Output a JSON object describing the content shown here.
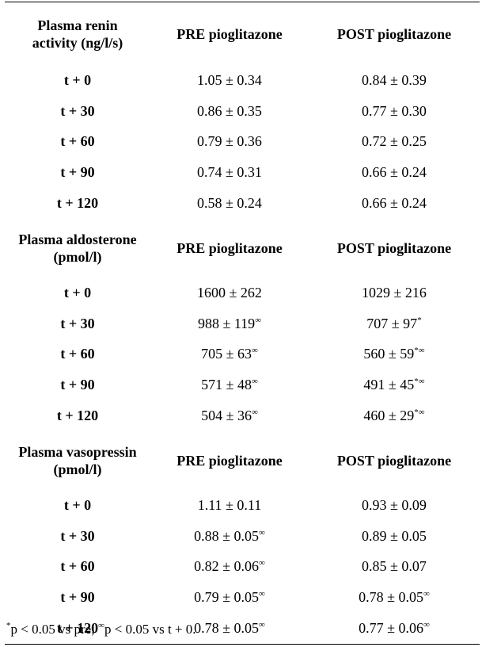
{
  "sections": [
    {
      "label_line1": "Plasma renin",
      "label_line2": "activity (ng/l/s)",
      "col_pre": "PRE pioglitazone",
      "col_post": "POST pioglitazone",
      "rows": [
        {
          "time": "t + 0",
          "pre": "1.05 ± 0.34",
          "pre_sup": "",
          "post": "0.84 ± 0.39",
          "post_sup": ""
        },
        {
          "time": "t + 30",
          "pre": "0.86 ± 0.35",
          "pre_sup": "",
          "post": "0.77 ± 0.30",
          "post_sup": ""
        },
        {
          "time": "t + 60",
          "pre": "0.79 ± 0.36",
          "pre_sup": "",
          "post": "0.72 ± 0.25",
          "post_sup": ""
        },
        {
          "time": "t + 90",
          "pre": "0.74 ± 0.31",
          "pre_sup": "",
          "post": "0.66 ± 0.24",
          "post_sup": ""
        },
        {
          "time": "t + 120",
          "pre": "0.58 ± 0.24",
          "pre_sup": "",
          "post": "0.66 ± 0.24",
          "post_sup": ""
        }
      ]
    },
    {
      "label_line1": "Plasma aldosterone",
      "label_line2": "(pmol/l)",
      "col_pre": "PRE pioglitazone",
      "col_post": "POST pioglitazone",
      "rows": [
        {
          "time": "t + 0",
          "pre": "1600 ± 262",
          "pre_sup": "",
          "post": "1029 ± 216",
          "post_sup": ""
        },
        {
          "time": "t + 30",
          "pre": "988 ± 119",
          "pre_sup": "∞",
          "post": "707 ± 97",
          "post_sup": "*"
        },
        {
          "time": "t + 60",
          "pre": "705 ± 63",
          "pre_sup": "∞",
          "post": "560 ± 59",
          "post_sup": "*∞"
        },
        {
          "time": "t + 90",
          "pre": "571 ± 48",
          "pre_sup": "∞",
          "post": "491 ± 45",
          "post_sup": "*∞"
        },
        {
          "time": "t + 120",
          "pre": "504 ± 36",
          "pre_sup": "∞",
          "post": "460 ± 29",
          "post_sup": "*∞"
        }
      ]
    },
    {
      "label_line1": "Plasma vasopressin",
      "label_line2": "(pmol/l)",
      "col_pre": "PRE pioglitazone",
      "col_post": "POST pioglitazone",
      "rows": [
        {
          "time": "t + 0",
          "pre": "1.11 ± 0.11",
          "pre_sup": "",
          "post": "0.93 ± 0.09",
          "post_sup": ""
        },
        {
          "time": "t + 30",
          "pre": "0.88 ± 0.05",
          "pre_sup": "∞",
          "post": "0.89 ± 0.05",
          "post_sup": ""
        },
        {
          "time": "t + 60",
          "pre": "0.82 ± 0.06",
          "pre_sup": "∞",
          "post": "0.85 ± 0.07",
          "post_sup": ""
        },
        {
          "time": "t + 90",
          "pre": "0.79 ± 0.05",
          "pre_sup": "∞",
          "post": "0.78 ± 0.05",
          "post_sup": "∞"
        },
        {
          "time": "t + 120",
          "pre": "0.78 ± 0.05",
          "pre_sup": "∞",
          "post": "0.77 ± 0.06",
          "post_sup": "∞"
        }
      ]
    }
  ],
  "footnote": {
    "sup1": "*",
    "text1": "p < 0.05 vs pre; ",
    "sup2": "∞",
    "text2": "p < 0.05 vs t + 0."
  }
}
